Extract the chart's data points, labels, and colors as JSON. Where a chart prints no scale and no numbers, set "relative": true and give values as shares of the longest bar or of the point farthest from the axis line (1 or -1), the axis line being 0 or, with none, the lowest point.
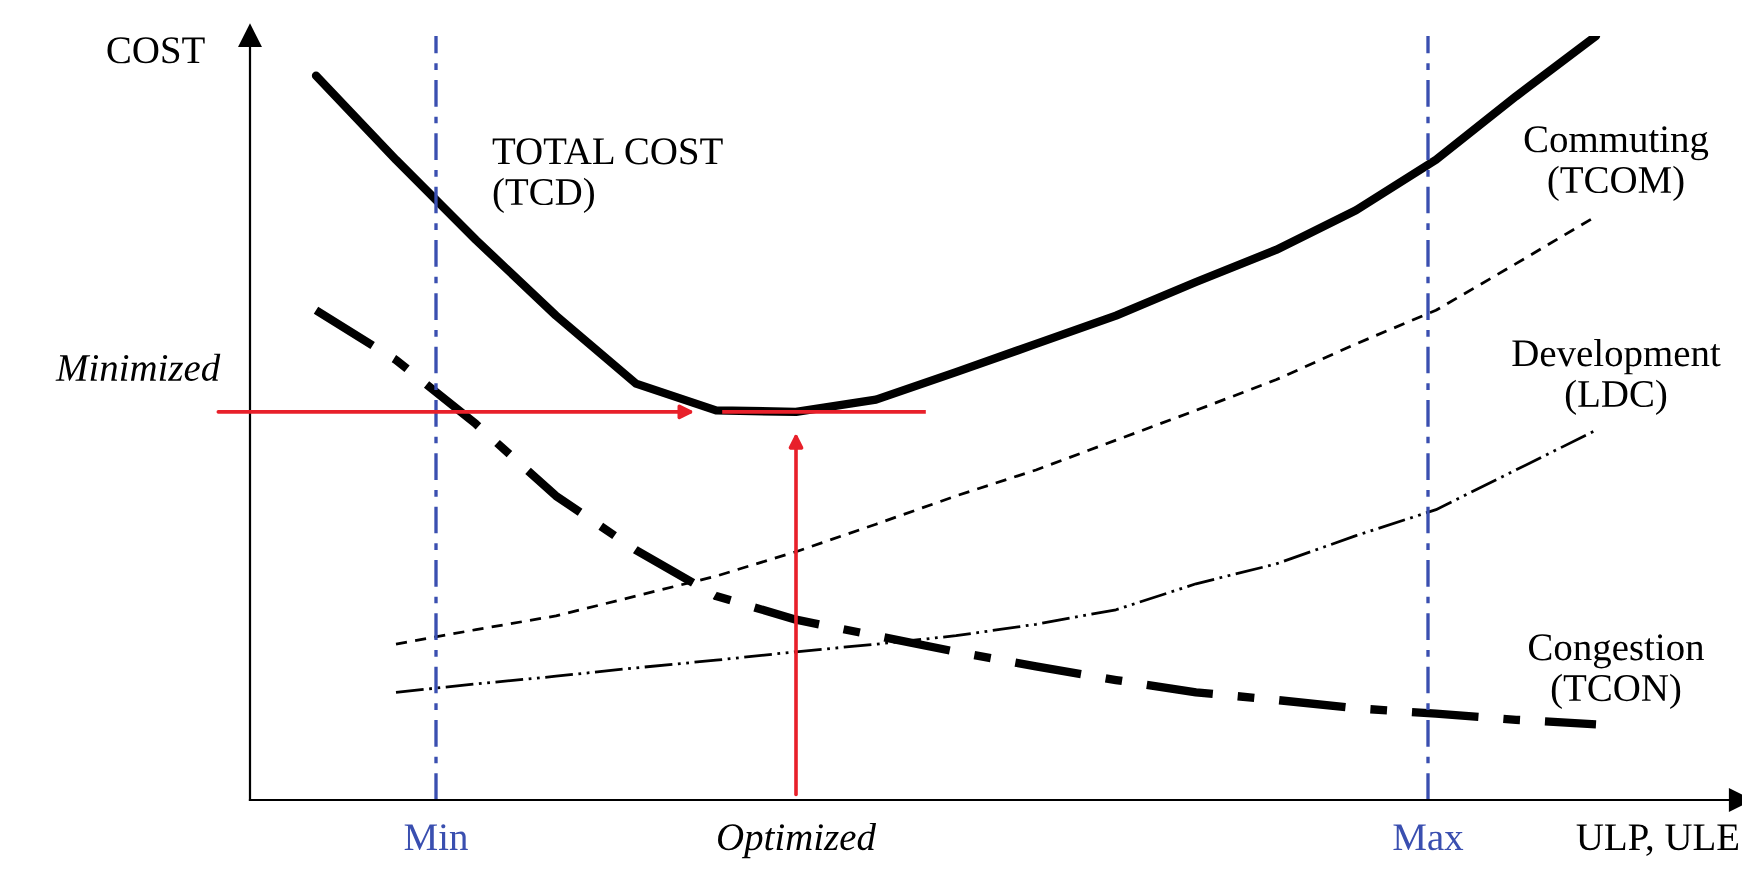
{
  "chart_data": {
    "type": "line",
    "relative": true,
    "xlabel": "ULP, ULE",
    "ylabel": "COST",
    "marker": "none",
    "categories": [
      null,
      null,
      null,
      null,
      null,
      null,
      null,
      null,
      null,
      null,
      null,
      null,
      null,
      null,
      null,
      null,
      null
    ],
    "series": [
      {
        "name": "TOTAL COST\n(TCD)",
        "color": "#000000",
        "line_style": "solid",
        "values": [
          0.948,
          0.838,
          0.733,
          0.634,
          0.545,
          0.51,
          0.508,
          0.524,
          0.56,
          0.597,
          0.634,
          0.678,
          0.72,
          0.772,
          0.838,
          0.921,
          1.0
        ]
      },
      {
        "name": "Commuting\n(TCOM)",
        "color": "#000000",
        "line_style": "dashed",
        "values": [
          null,
          0.204,
          0.223,
          0.241,
          0.267,
          0.293,
          0.325,
          0.361,
          0.398,
          0.432,
          0.471,
          0.51,
          0.55,
          0.597,
          0.641,
          0.702,
          0.764
        ]
      },
      {
        "name": "Development\n(LDC)",
        "color": "#000000",
        "line_style": "dashdot",
        "values": [
          null,
          0.141,
          0.152,
          0.162,
          0.173,
          0.183,
          0.194,
          0.204,
          0.215,
          0.23,
          0.249,
          0.283,
          0.309,
          0.346,
          0.38,
          0.432,
          0.484
        ]
      },
      {
        "name": "Congestion\n(TCON)",
        "color": "#000000",
        "line_style": "dashdot",
        "values": [
          0.641,
          0.576,
          0.492,
          0.398,
          0.327,
          0.267,
          0.236,
          0.215,
          0.194,
          0.175,
          0.157,
          0.141,
          0.131,
          0.12,
          0.113,
          0.105,
          0.099
        ]
      }
    ],
    "annotations": [
      "Minimized",
      "Optimized",
      "Min",
      "Max"
    ]
  }
}
